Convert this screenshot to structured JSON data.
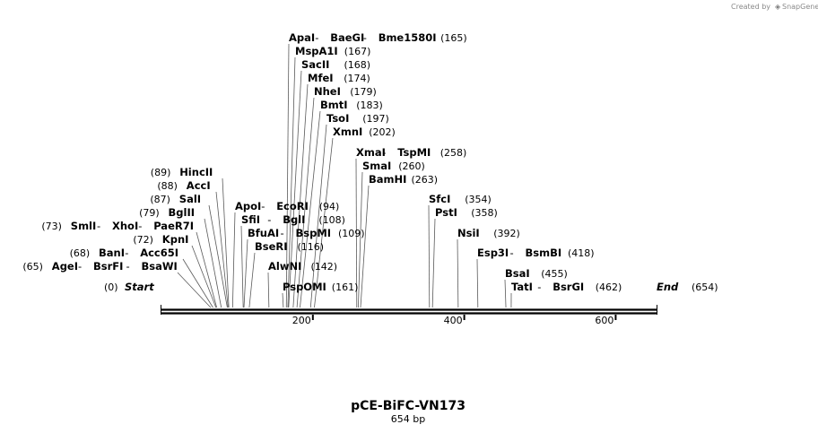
{
  "credit": {
    "prefix": "Created by",
    "brand": "SnapGene"
  },
  "map": {
    "name": "pCE-BiFC-VN173",
    "length_label": "654 bp",
    "length": 654,
    "start_label": "Start",
    "start_pos": "(0)",
    "end_label": "End",
    "end_pos": "(654)",
    "ticks": [
      {
        "bp": 200,
        "label": "200"
      },
      {
        "bp": 400,
        "label": "400"
      },
      {
        "bp": 600,
        "label": "600"
      }
    ]
  },
  "sites": {
    "left": [
      {
        "names": [
          "HincII"
        ],
        "pos": "(89)",
        "bp": 89
      },
      {
        "names": [
          "AccI"
        ],
        "pos": "(88)",
        "bp": 88
      },
      {
        "names": [
          "SalI"
        ],
        "pos": "(87)",
        "bp": 87
      },
      {
        "names": [
          "BglII"
        ],
        "pos": "(79)",
        "bp": 79
      },
      {
        "names": [
          "SmlI",
          "XhoI",
          "PaeR7I"
        ],
        "pos": "(73)",
        "bp": 73
      },
      {
        "names": [
          "KpnI"
        ],
        "pos": "(72)",
        "bp": 72
      },
      {
        "names": [
          "BanI",
          "Acc65I"
        ],
        "pos": "(68)",
        "bp": 68
      },
      {
        "names": [
          "AgeI",
          "BsrFI",
          "BsaWI"
        ],
        "pos": "(65)",
        "bp": 65
      }
    ],
    "right": [
      {
        "names": [
          "ApaI",
          "BaeGI",
          "Bme1580I"
        ],
        "pos": "(165)",
        "bp": 165
      },
      {
        "names": [
          "MspA1I"
        ],
        "pos": "(167)",
        "bp": 167
      },
      {
        "names": [
          "SacII"
        ],
        "pos": "(168)",
        "bp": 168
      },
      {
        "names": [
          "MfeI"
        ],
        "pos": "(174)",
        "bp": 174
      },
      {
        "names": [
          "NheI"
        ],
        "pos": "(179)",
        "bp": 179
      },
      {
        "names": [
          "BmtI"
        ],
        "pos": "(183)",
        "bp": 183
      },
      {
        "names": [
          "TsoI"
        ],
        "pos": "(197)",
        "bp": 197
      },
      {
        "names": [
          "XmnI"
        ],
        "pos": "(202)",
        "bp": 202
      },
      {
        "names": [
          "XmaI",
          "TspMI"
        ],
        "pos": "(258)",
        "bp": 258
      },
      {
        "names": [
          "SmaI"
        ],
        "pos": "(260)",
        "bp": 260
      },
      {
        "names": [
          "BamHI"
        ],
        "pos": "(263)",
        "bp": 263
      },
      {
        "names": [
          "ApoI",
          "EcoRI"
        ],
        "pos": "(94)",
        "bp": 94
      },
      {
        "names": [
          "SfiI",
          "BglI"
        ],
        "pos": "(108)",
        "bp": 108
      },
      {
        "names": [
          "BfuAI",
          "BspMI"
        ],
        "pos": "(109)",
        "bp": 109
      },
      {
        "names": [
          "BseRI"
        ],
        "pos": "(116)",
        "bp": 116
      },
      {
        "names": [
          "AlwNI"
        ],
        "pos": "(142)",
        "bp": 142
      },
      {
        "names": [
          "PspOMI"
        ],
        "pos": "(161)",
        "bp": 161
      },
      {
        "names": [
          "SfcI"
        ],
        "pos": "(354)",
        "bp": 354
      },
      {
        "names": [
          "PstI"
        ],
        "pos": "(358)",
        "bp": 358
      },
      {
        "names": [
          "NsiI"
        ],
        "pos": "(392)",
        "bp": 392
      },
      {
        "names": [
          "Esp3I",
          "BsmBI"
        ],
        "pos": "(418)",
        "bp": 418
      },
      {
        "names": [
          "BsaI"
        ],
        "pos": "(455)",
        "bp": 455
      },
      {
        "names": [
          "TatI",
          "BsrGI"
        ],
        "pos": "(462)",
        "bp": 462
      }
    ]
  }
}
